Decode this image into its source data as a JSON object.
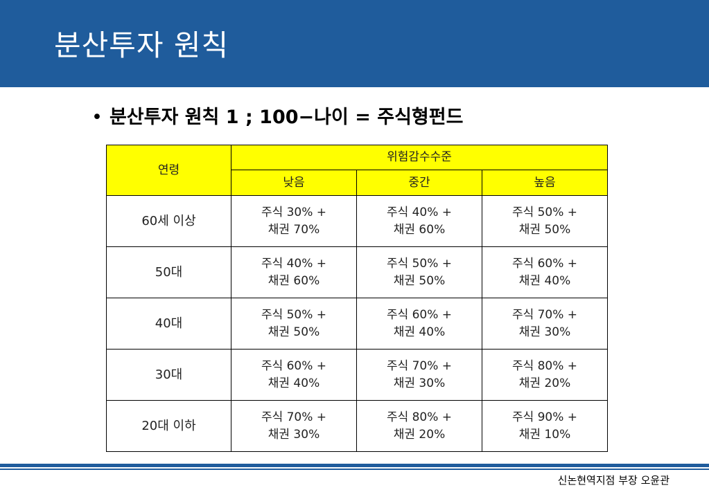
{
  "slide": {
    "title": "분산투자 원칙",
    "bullet_symbol": "•",
    "bullet_text": "분산투자 원칙 1 ; 100−나이 = 주식형펀드",
    "footer": "신논현역지점 부장 오윤관",
    "colors": {
      "header_band": "#1f5c9c",
      "table_header": "#ffff00"
    }
  },
  "table": {
    "age_header": "연령",
    "risk_header": "위험감수수준",
    "risk_levels": [
      "낮음",
      "중간",
      "높음"
    ],
    "rows": [
      {
        "age": "60세 이상",
        "cells": [
          {
            "stock": "주식 30% +",
            "bond": "채권 70%"
          },
          {
            "stock": "주식 40% +",
            "bond": "채권 60%"
          },
          {
            "stock": "주식 50% +",
            "bond": "채권 50%"
          }
        ]
      },
      {
        "age": "50대",
        "cells": [
          {
            "stock": "주식 40% +",
            "bond": "채권 60%"
          },
          {
            "stock": "주식 50% +",
            "bond": "채권 50%"
          },
          {
            "stock": "주식 60% +",
            "bond": "채권 40%"
          }
        ]
      },
      {
        "age": "40대",
        "cells": [
          {
            "stock": "주식 50% +",
            "bond": "채권 50%"
          },
          {
            "stock": "주식 60% +",
            "bond": "채권 40%"
          },
          {
            "stock": "주식 70% +",
            "bond": "채권 30%"
          }
        ]
      },
      {
        "age": "30대",
        "cells": [
          {
            "stock": "주식 60% +",
            "bond": "채권 40%"
          },
          {
            "stock": "주식 70% +",
            "bond": "채권 30%"
          },
          {
            "stock": "주식 80% +",
            "bond": "채권 20%"
          }
        ]
      },
      {
        "age": "20대 이하",
        "cells": [
          {
            "stock": "주식 70% +",
            "bond": "채권 30%"
          },
          {
            "stock": "주식 80% +",
            "bond": "채권 20%"
          },
          {
            "stock": "주식 90% +",
            "bond": "채권 10%"
          }
        ]
      }
    ]
  }
}
